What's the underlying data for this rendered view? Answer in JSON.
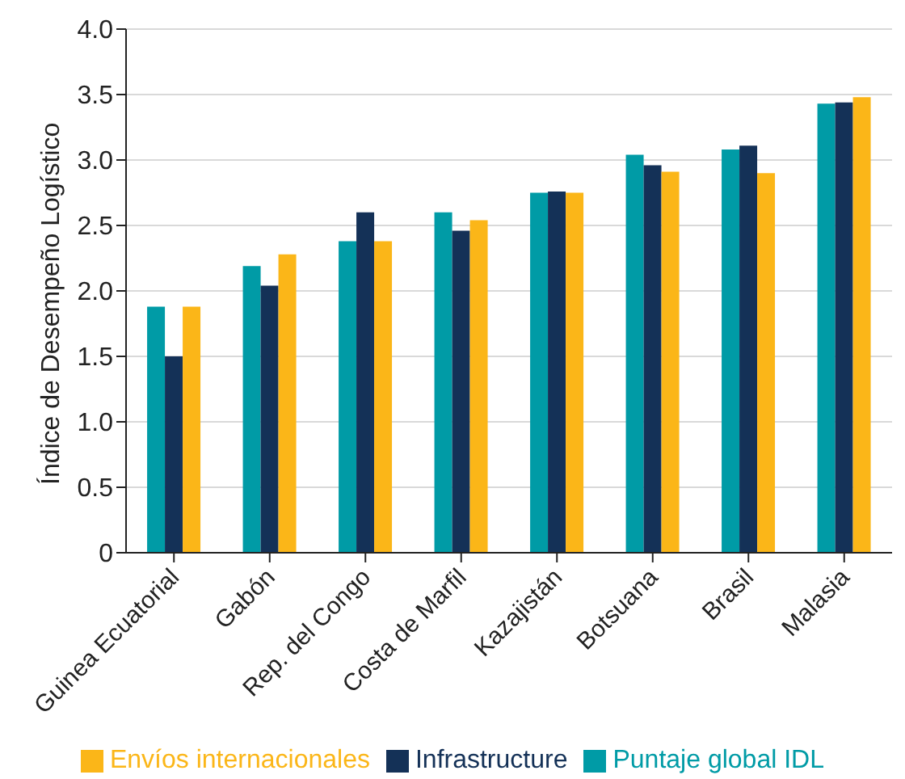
{
  "chart_data": {
    "type": "bar",
    "ylabel": "Índice de Desempeño Logístico",
    "categories": [
      "Guinea Ecuatorial",
      "Gabón",
      "Rep. del Congo",
      "Costa de Marfil",
      "Kazajistán",
      "Botsuana",
      "Brasil",
      "Malasia"
    ],
    "series": [
      {
        "name": "Puntaje global IDL",
        "color": "#009ba6",
        "values": [
          1.88,
          2.19,
          2.38,
          2.6,
          2.75,
          3.04,
          3.08,
          3.43
        ]
      },
      {
        "name": "Infrastructure",
        "color": "#143157",
        "values": [
          1.5,
          2.04,
          2.6,
          2.46,
          2.76,
          2.96,
          3.11,
          3.44
        ]
      },
      {
        "name": "Envíos internacionales",
        "color": "#fbb618",
        "values": [
          1.88,
          2.28,
          2.38,
          2.54,
          2.75,
          2.91,
          2.9,
          3.48
        ]
      }
    ],
    "ylim": [
      0,
      4
    ],
    "yticks": [
      0,
      0.5,
      {
        "value": 1,
        "label": "1.0"
      },
      1.5,
      {
        "value": 2,
        "label": "2.0"
      },
      2.5,
      {
        "value": 3,
        "label": "3.0"
      },
      3.5,
      {
        "value": 4,
        "label": "4.0"
      }
    ],
    "grid": "y",
    "legend": "bottom"
  }
}
